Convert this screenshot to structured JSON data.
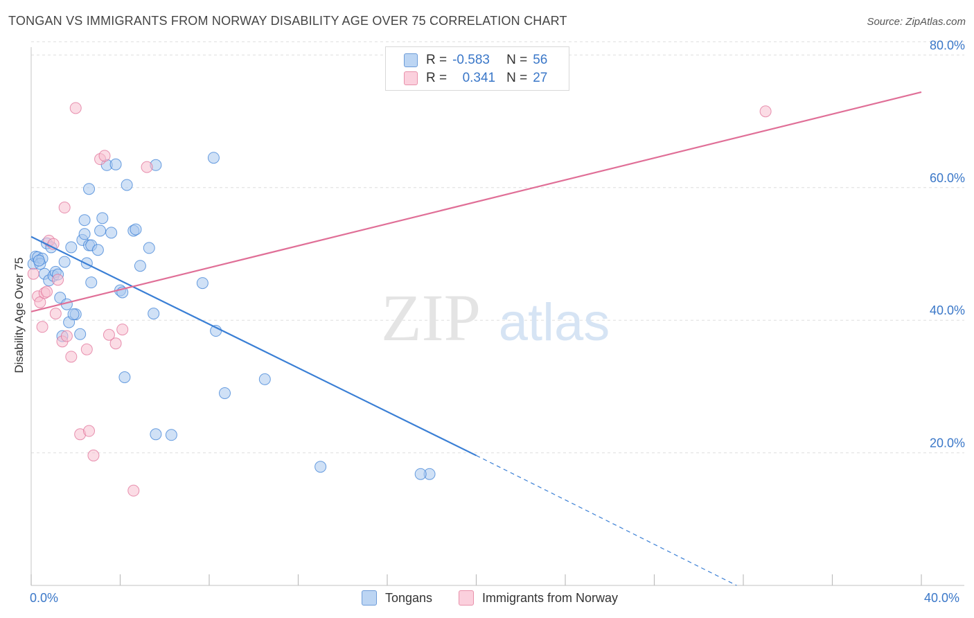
{
  "title": "TONGAN VS IMMIGRANTS FROM NORWAY DISABILITY AGE OVER 75 CORRELATION CHART",
  "source": "Source: ZipAtlas.com",
  "watermark": {
    "zip": "ZIP",
    "atlas": "atlas"
  },
  "legend": {
    "rows": [
      {
        "r_label": "R =",
        "r_value": "-0.583",
        "n_label": "N =",
        "n_value": "56",
        "color": "#a9c8ef",
        "border": "#6c9bd8"
      },
      {
        "r_label": "R =",
        "r_value": "0.341",
        "n_label": "N =",
        "n_value": "27",
        "color": "#f7bfd0",
        "border": "#e890aa"
      }
    ]
  },
  "bottom_legend": [
    "Tongans",
    "Immigrants from Norway"
  ],
  "x_axis_labels": {
    "min": "0.0%",
    "max": "40.0%"
  },
  "chart_data": {
    "type": "scatter",
    "title": "TONGAN VS IMMIGRANTS FROM NORWAY DISABILITY AGE OVER 75 CORRELATION CHART",
    "xlabel": "",
    "ylabel": "Disability Age Over 75",
    "xlim": [
      0,
      40
    ],
    "ylim": [
      0,
      82
    ],
    "y_ticks": [
      20,
      40,
      60,
      80
    ],
    "y_tick_labels": [
      "20.0%",
      "40.0%",
      "60.0%",
      "80.0%"
    ],
    "grid": true,
    "series": [
      {
        "name": "Tongans",
        "color": "#3a7fd5",
        "fill": "#a9c8ef",
        "points": [
          [
            0.1,
            48.5
          ],
          [
            0.2,
            49.6
          ],
          [
            0.3,
            49.5
          ],
          [
            0.5,
            49.3
          ],
          [
            0.7,
            51.6
          ],
          [
            0.9,
            51.0
          ],
          [
            0.6,
            47.0
          ],
          [
            0.8,
            46.0
          ],
          [
            1.0,
            46.7
          ],
          [
            1.1,
            47.3
          ],
          [
            1.2,
            46.9
          ],
          [
            1.5,
            48.8
          ],
          [
            1.3,
            43.4
          ],
          [
            1.6,
            42.4
          ],
          [
            1.7,
            39.7
          ],
          [
            1.4,
            37.6
          ],
          [
            1.8,
            51.0
          ],
          [
            2.0,
            40.9
          ],
          [
            2.2,
            37.9
          ],
          [
            2.3,
            52.1
          ],
          [
            2.4,
            53.0
          ],
          [
            2.5,
            48.6
          ],
          [
            2.4,
            55.1
          ],
          [
            2.6,
            51.3
          ],
          [
            2.7,
            51.3
          ],
          [
            2.6,
            59.8
          ],
          [
            2.7,
            45.7
          ],
          [
            3.0,
            50.6
          ],
          [
            3.1,
            53.5
          ],
          [
            3.2,
            55.4
          ],
          [
            3.4,
            63.4
          ],
          [
            3.6,
            53.2
          ],
          [
            3.8,
            63.5
          ],
          [
            4.0,
            44.5
          ],
          [
            4.1,
            44.2
          ],
          [
            4.3,
            60.4
          ],
          [
            4.6,
            53.5
          ],
          [
            4.7,
            53.7
          ],
          [
            4.9,
            48.2
          ],
          [
            5.3,
            50.9
          ],
          [
            5.6,
            63.4
          ],
          [
            5.5,
            41.0
          ],
          [
            7.7,
            45.6
          ],
          [
            8.2,
            64.5
          ],
          [
            8.3,
            38.4
          ],
          [
            8.7,
            29.0
          ],
          [
            10.5,
            31.1
          ],
          [
            13.0,
            17.9
          ],
          [
            17.9,
            16.8
          ],
          [
            17.5,
            16.8
          ],
          [
            4.2,
            31.4
          ],
          [
            6.3,
            22.7
          ],
          [
            5.6,
            22.8
          ],
          [
            1.9,
            40.9
          ],
          [
            0.4,
            48.5
          ],
          [
            0.35,
            49.0
          ]
        ],
        "trend": {
          "x0": 0,
          "y0": 52.6,
          "x1": 20.0,
          "y1": 19.6,
          "dash_x1": 31.7,
          "dash_y1": 0
        }
      },
      {
        "name": "Immigrants from Norway",
        "color": "#e06f97",
        "fill": "#f7bfd0",
        "points": [
          [
            0.1,
            47.0
          ],
          [
            0.3,
            43.6
          ],
          [
            0.4,
            42.7
          ],
          [
            0.6,
            44.1
          ],
          [
            0.7,
            44.3
          ],
          [
            0.5,
            39.0
          ],
          [
            0.8,
            52.0
          ],
          [
            1.0,
            51.5
          ],
          [
            1.1,
            41.0
          ],
          [
            1.2,
            46.1
          ],
          [
            1.4,
            36.8
          ],
          [
            1.5,
            57.0
          ],
          [
            1.6,
            37.6
          ],
          [
            1.8,
            34.5
          ],
          [
            2.0,
            72.0
          ],
          [
            2.2,
            22.8
          ],
          [
            2.5,
            35.6
          ],
          [
            2.6,
            23.3
          ],
          [
            2.8,
            19.6
          ],
          [
            3.1,
            64.3
          ],
          [
            3.3,
            64.8
          ],
          [
            3.5,
            37.8
          ],
          [
            3.8,
            36.5
          ],
          [
            4.1,
            38.6
          ],
          [
            4.6,
            14.3
          ],
          [
            5.2,
            63.1
          ],
          [
            33.0,
            71.5
          ]
        ],
        "trend": {
          "x0": 0,
          "y0": 41.3,
          "x1": 40,
          "y1": 74.4
        }
      }
    ]
  }
}
